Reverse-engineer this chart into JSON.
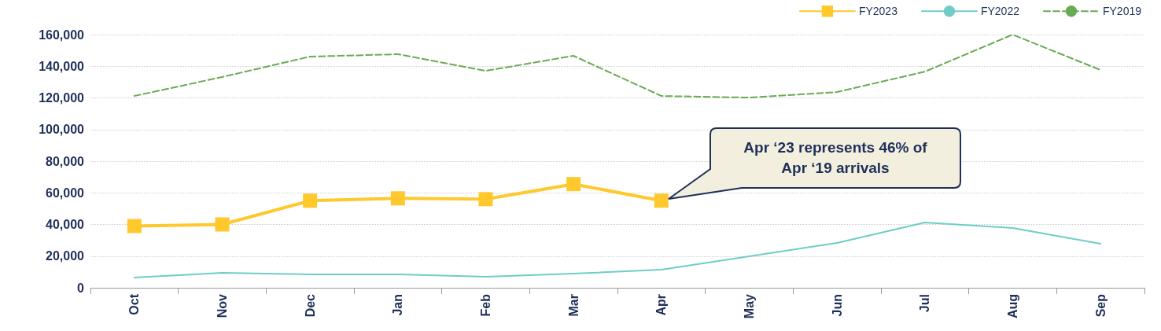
{
  "chart_data": {
    "type": "line",
    "categories": [
      "Oct",
      "Nov",
      "Dec",
      "Jan",
      "Feb",
      "Mar",
      "Apr",
      "May",
      "Jun",
      "Jul",
      "Aug",
      "Sep"
    ],
    "series": [
      {
        "name": "FY2023",
        "color": "#ffc82c",
        "marker": "square",
        "line_style": "solid",
        "values": [
          39000,
          40000,
          55000,
          56500,
          56000,
          65500,
          55000,
          null,
          null,
          null,
          null,
          null
        ]
      },
      {
        "name": "FY2022",
        "color": "#6fcdc6",
        "marker": "none",
        "line_style": "solid",
        "values": [
          6500,
          9400,
          8500,
          8500,
          7000,
          9000,
          11400,
          19900,
          28300,
          41200,
          37800,
          27800
        ]
      },
      {
        "name": "FY2019",
        "color": "#6aaa55",
        "marker": "none",
        "line_style": "dashed",
        "values": [
          121200,
          133200,
          146100,
          147600,
          137100,
          146600,
          121200,
          120200,
          123700,
          136600,
          160000,
          137600
        ]
      }
    ],
    "ylim": [
      0,
      160000
    ],
    "yticks": [
      0,
      {
        "value": 20000,
        "label": "20,000"
      },
      {
        "value": 40000,
        "label": "40,000"
      },
      {
        "value": 60000,
        "label": "60,000"
      },
      {
        "value": 80000,
        "label": "80,000"
      },
      {
        "value": 100000,
        "label": "100,000"
      },
      {
        "value": 120000,
        "label": "120,000"
      },
      {
        "value": 140000,
        "label": "140,000"
      },
      {
        "value": 160000,
        "label": "160,000"
      }
    ],
    "grid": "y",
    "legend": "top right",
    "annotations": [
      "Apr ‘23 represents 46% of Apr ‘19 arrivals"
    ]
  }
}
